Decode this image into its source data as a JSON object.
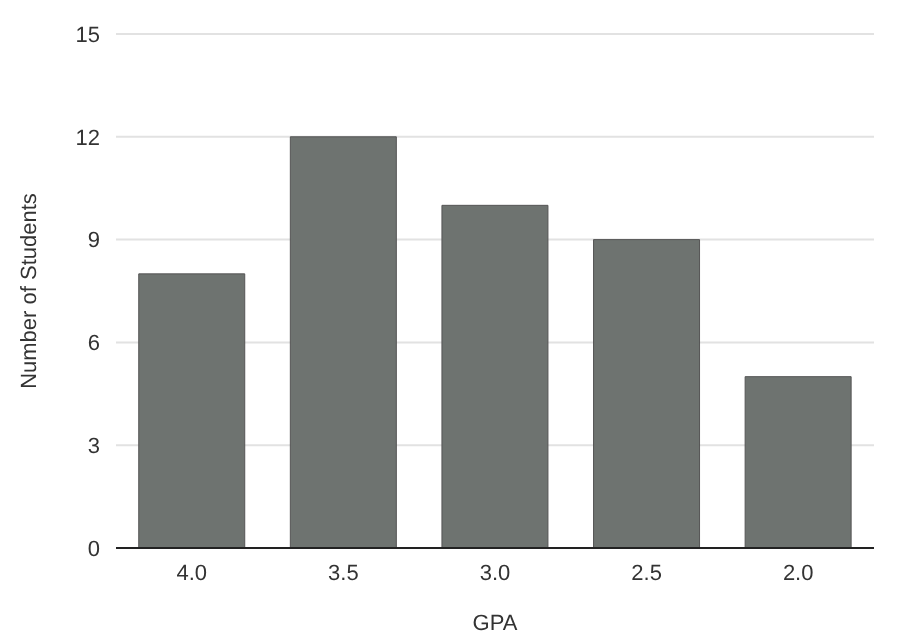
{
  "chart_data": {
    "type": "bar",
    "xlabel": "GPA",
    "ylabel": "Number of Students",
    "categories": [
      "4.0",
      "3.5",
      "3.0",
      "2.5",
      "2.0"
    ],
    "values": [
      8,
      12,
      10,
      9,
      5
    ],
    "color": "#6e7370",
    "ylim": [
      0,
      15
    ],
    "yticks": [
      0,
      3,
      6,
      9,
      12,
      15
    ],
    "grid": "y"
  }
}
